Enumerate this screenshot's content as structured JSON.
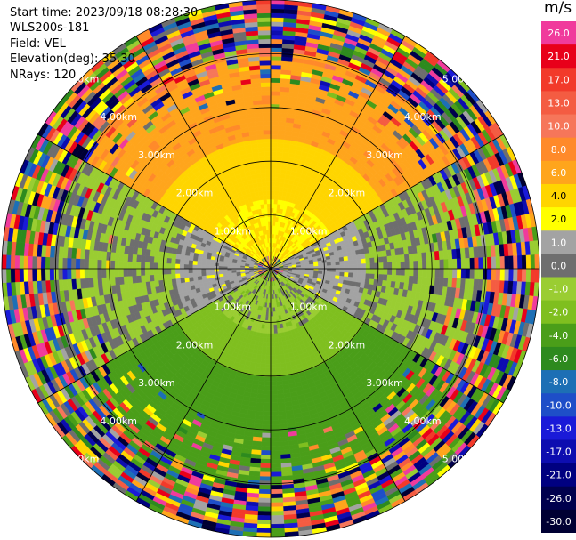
{
  "header": {
    "start_time": "Start time: 2023/09/18 08:28:30",
    "instrument": "WLS200s-181",
    "field": "Field: VEL",
    "elevation": "Elevation(deg): 35.30",
    "nrays": "NRays: 120"
  },
  "colorbar": {
    "unit": "m/s",
    "bins": [
      {
        "label": "26.0",
        "color": "#f03b9c"
      },
      {
        "label": "21.0",
        "color": "#e8001a"
      },
      {
        "label": "17.0",
        "color": "#f23a2a"
      },
      {
        "label": "13.0",
        "color": "#f45c42"
      },
      {
        "label": "10.0",
        "color": "#f6765a"
      },
      {
        "label": "8.0",
        "color": "#ff8a2a"
      },
      {
        "label": "6.0",
        "color": "#ffa51c"
      },
      {
        "label": "4.0",
        "color": "#ffd500"
      },
      {
        "label": "2.0",
        "color": "#ffff00"
      },
      {
        "label": "1.0",
        "color": "#a3a3a3"
      },
      {
        "label": "0.0",
        "color": "#6e6e6e"
      },
      {
        "label": "-1.0",
        "color": "#9acd32"
      },
      {
        "label": "-2.0",
        "color": "#7fbf1f"
      },
      {
        "label": "-4.0",
        "color": "#4a9e19"
      },
      {
        "label": "-6.0",
        "color": "#2d8a1e"
      },
      {
        "label": "-8.0",
        "color": "#1d6fb5"
      },
      {
        "label": "-10.0",
        "color": "#1e4ec8"
      },
      {
        "label": "-13.0",
        "color": "#1a1ad8"
      },
      {
        "label": "-17.0",
        "color": "#0d0db0"
      },
      {
        "label": "-21.0",
        "color": "#000080"
      },
      {
        "label": "-26.0",
        "color": "#00004d"
      },
      {
        "label": "-30.0",
        "color": "#000033"
      }
    ]
  },
  "chart_data": {
    "type": "heatmap",
    "projection": "PPI polar (lidar)",
    "field": "VEL",
    "rays": 120,
    "range_rings_km": [
      1.0,
      2.0,
      3.0,
      4.0,
      5.0
    ],
    "ring_labels": [
      "1.00km",
      "2.00km",
      "3.00km",
      "4.00km",
      "5.00km"
    ],
    "azimuth_lines_deg": [
      0,
      30,
      60,
      90,
      120,
      150,
      180,
      210,
      240,
      270,
      300,
      330
    ],
    "velocity_structure": {
      "north_sector_m_s": [
        2.0,
        6.0
      ],
      "east_west_sector_m_s": [
        0.0,
        1.0
      ],
      "south_sector_m_s": [
        -6.0,
        -1.0
      ],
      "outer_noise": "random values beyond ~4 km"
    },
    "colorbar_range_m_s": [
      -30.0,
      26.0
    ]
  }
}
